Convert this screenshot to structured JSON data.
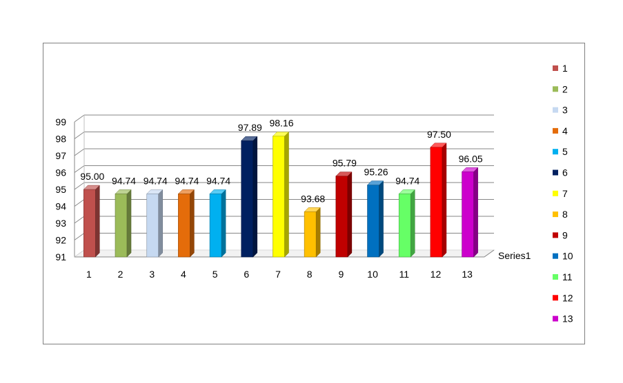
{
  "chart_data": {
    "type": "bar",
    "categories": [
      "1",
      "2",
      "3",
      "4",
      "5",
      "6",
      "7",
      "8",
      "9",
      "10",
      "11",
      "12",
      "13"
    ],
    "series": [
      {
        "name": "Series1",
        "values": [
          95.0,
          94.74,
          94.74,
          94.74,
          94.74,
          97.89,
          98.16,
          93.68,
          95.79,
          95.26,
          94.74,
          97.5,
          96.05
        ],
        "labels": [
          "95.00",
          "94.74",
          "94.74",
          "94.74",
          "94.74",
          "97.89",
          "98.16",
          "93.68",
          "95.79",
          "95.26",
          "94.74",
          "97.50",
          "96.05"
        ]
      }
    ],
    "title": "",
    "xlabel": "",
    "ylabel": "",
    "ylim": [
      91,
      99
    ],
    "yticks": [
      "91",
      "92",
      "93",
      "94",
      "95",
      "96",
      "97",
      "98",
      "99"
    ],
    "grid": true,
    "style": "3d-column",
    "legend": {
      "placement": "right",
      "entries": [
        "1",
        "2",
        "3",
        "4",
        "5",
        "6",
        "7",
        "8",
        "9",
        "10",
        "11",
        "12",
        "13"
      ]
    },
    "colors": [
      "#c0504d",
      "#9bbb59",
      "#c6d9f1",
      "#e46c0a",
      "#00b0f0",
      "#002060",
      "#ffff00",
      "#ffc000",
      "#c00000",
      "#0070c0",
      "#66ff66",
      "#ff0000",
      "#cc00cc"
    ]
  }
}
